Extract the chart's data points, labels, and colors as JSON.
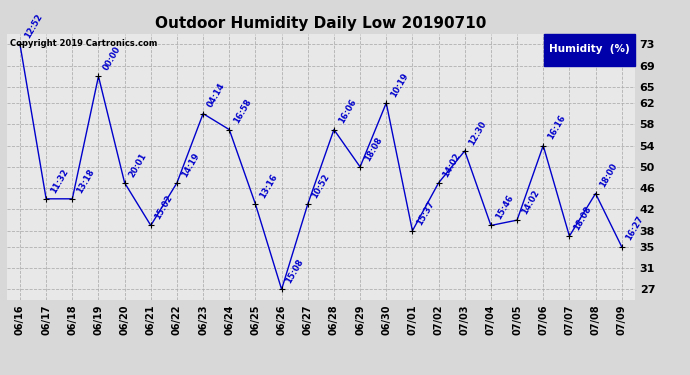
{
  "title": "Outdoor Humidity Daily Low 20190710",
  "copyright": "Copyright 2019 Cartronics.com",
  "legend_label": "Humidity  (%)",
  "dates": [
    "06/16",
    "06/17",
    "06/18",
    "06/19",
    "06/20",
    "06/21",
    "06/22",
    "06/23",
    "06/24",
    "06/25",
    "06/26",
    "06/27",
    "06/28",
    "06/29",
    "06/30",
    "07/01",
    "07/02",
    "07/03",
    "07/04",
    "07/05",
    "07/06",
    "07/07",
    "07/08",
    "07/09"
  ],
  "values": [
    73,
    44,
    44,
    67,
    47,
    39,
    47,
    60,
    57,
    43,
    27,
    43,
    57,
    50,
    62,
    38,
    47,
    53,
    39,
    40,
    54,
    37,
    45,
    35
  ],
  "times": [
    "12:52",
    "11:32",
    "13:18",
    "00:00",
    "20:01",
    "15:02",
    "14:19",
    "04:14",
    "16:58",
    "13:16",
    "15:08",
    "10:52",
    "16:06",
    "18:08",
    "10:19",
    "15:37",
    "14:02",
    "12:30",
    "15:46",
    "14:02",
    "16:16",
    "18:08",
    "18:00",
    "16:27"
  ],
  "ylim": [
    25,
    75
  ],
  "yticks": [
    27,
    31,
    35,
    38,
    42,
    46,
    50,
    54,
    58,
    62,
    65,
    69,
    73
  ],
  "line_color": "#0000cc",
  "marker_color": "#000000",
  "bg_color": "#d8d8d8",
  "plot_bg_color": "#e8e8e8",
  "legend_bg": "#0000aa",
  "legend_text_color": "#ffffff",
  "title_fontsize": 11,
  "ytick_fontsize": 8,
  "xtick_fontsize": 7,
  "annotation_fontsize": 6,
  "copyright_fontsize": 6
}
